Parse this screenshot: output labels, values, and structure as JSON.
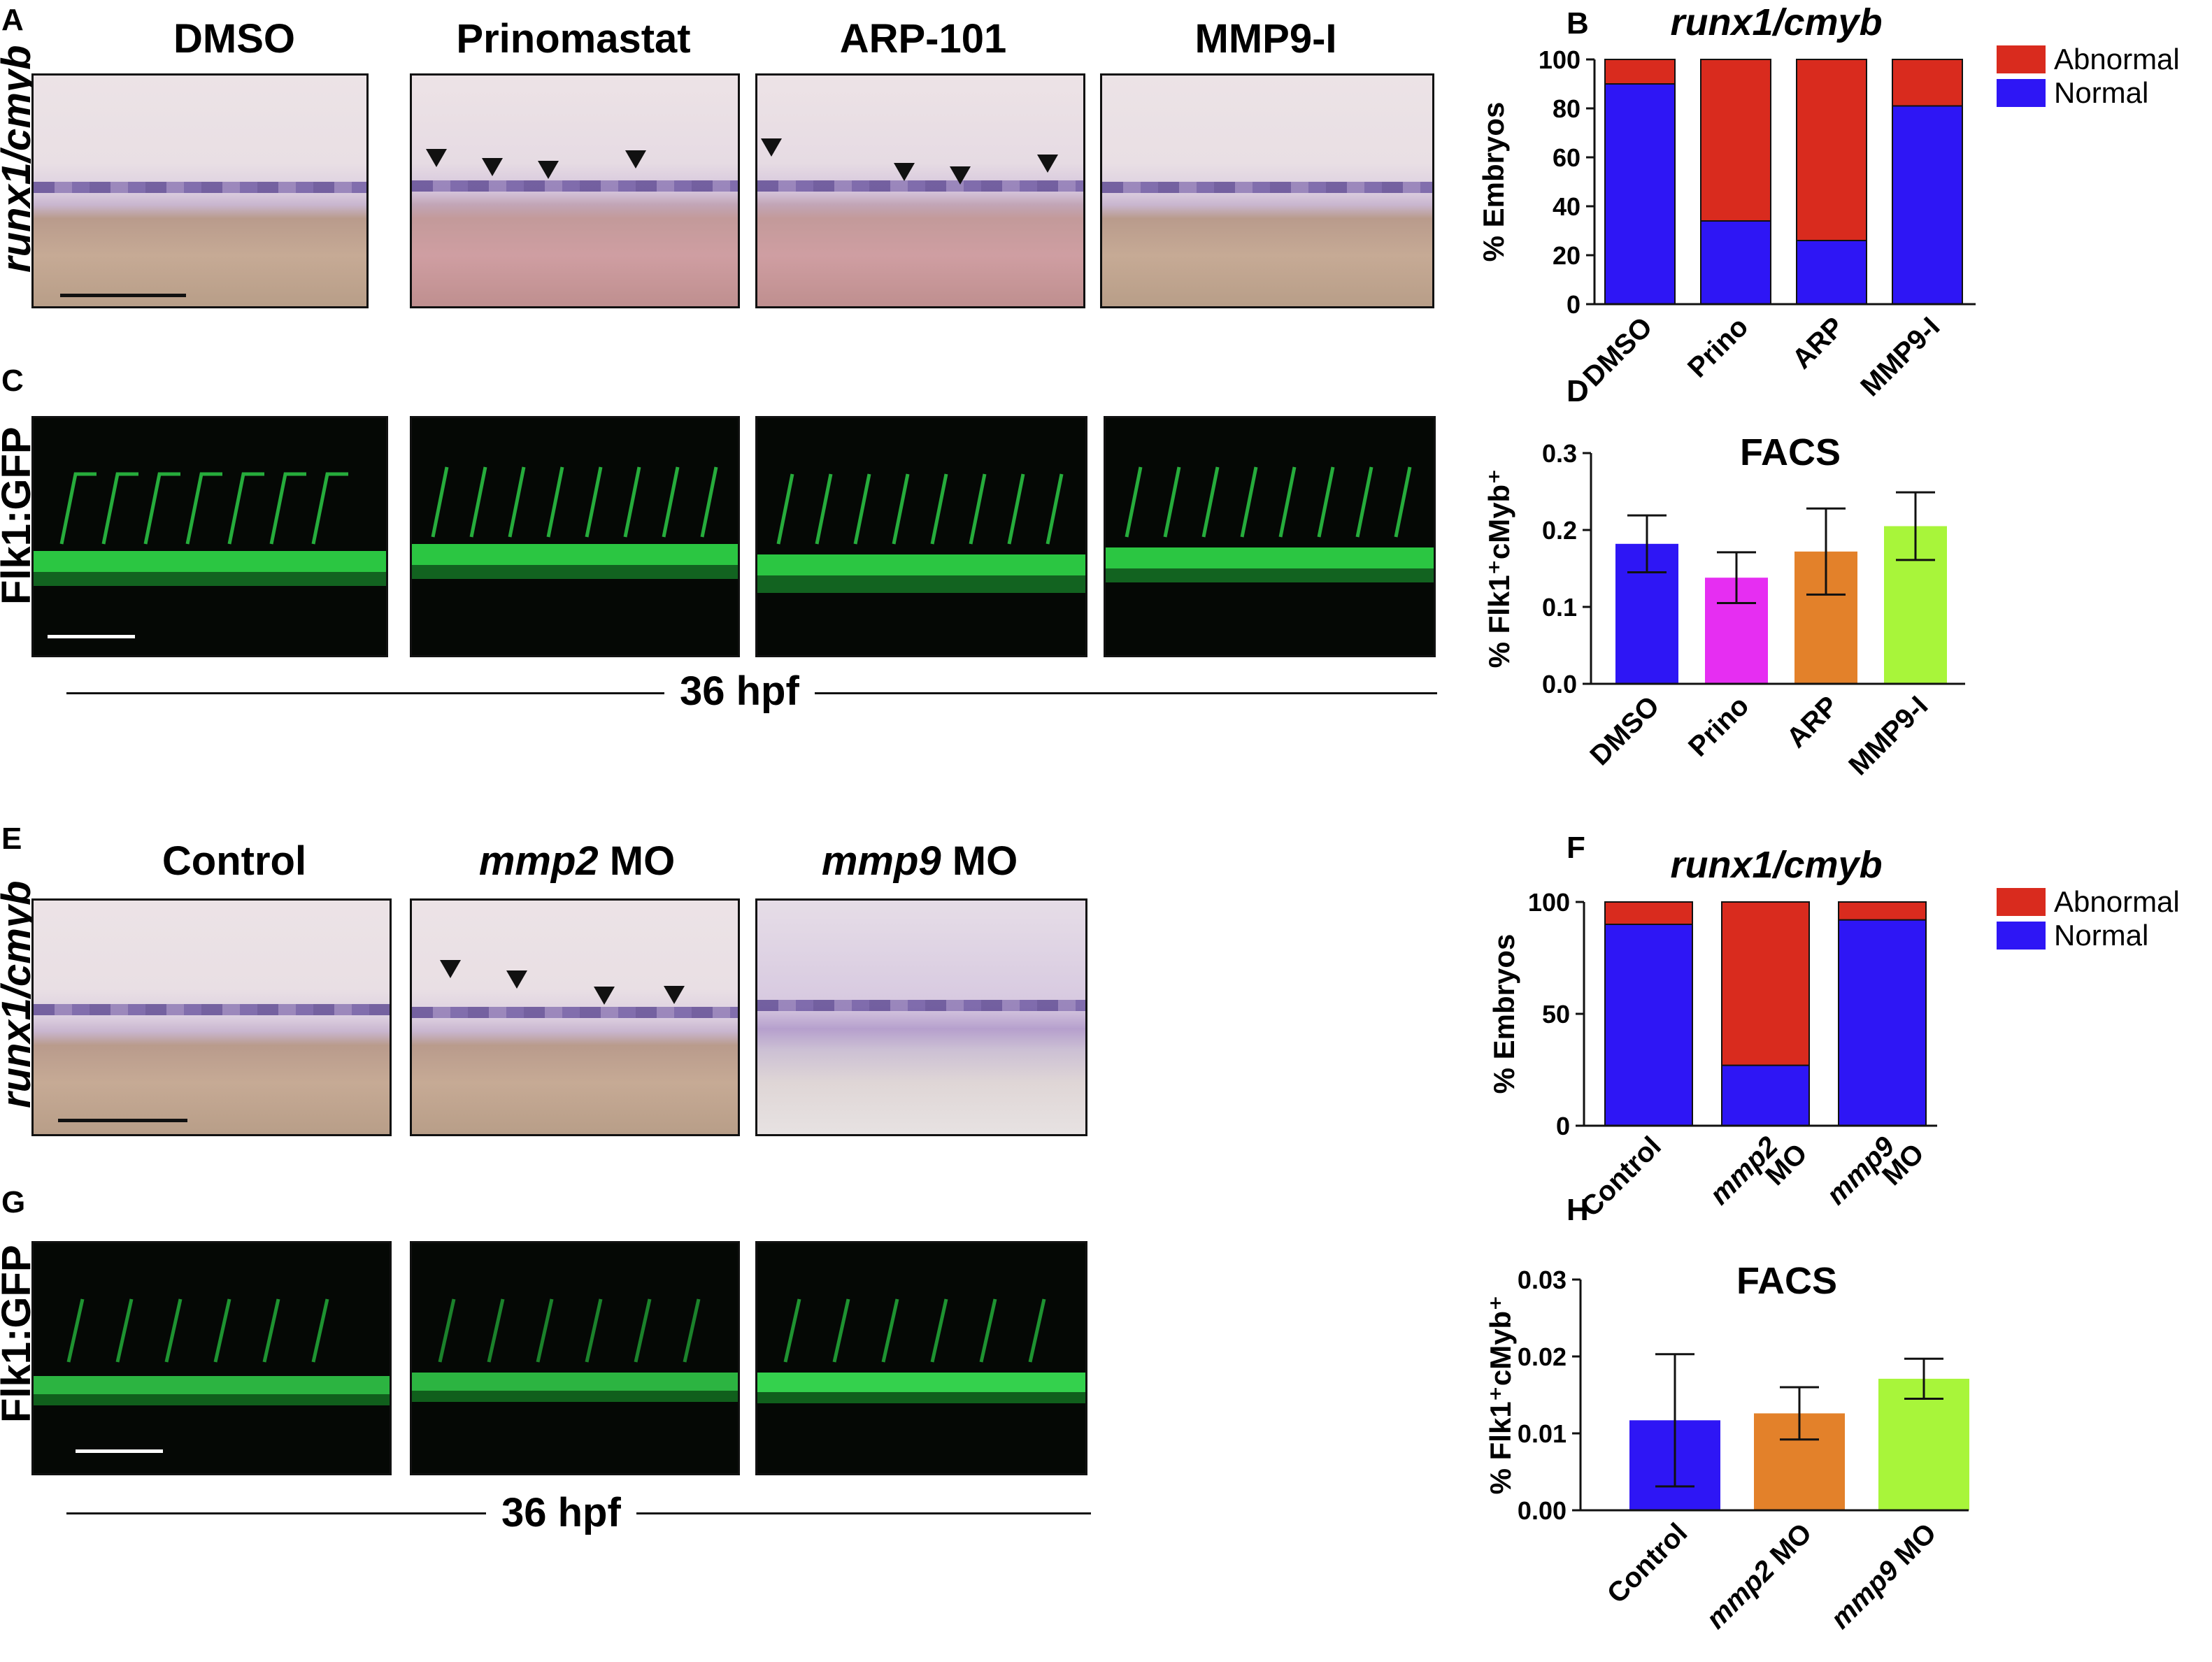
{
  "panels": {
    "a": {
      "letter": "A",
      "col_titles": [
        "DMSO",
        "Prinomastat",
        "ARP-101",
        "MMP9-I"
      ],
      "row_label": "runx1/cmyb"
    },
    "c": {
      "letter": "C",
      "row_label": "Flk1:GFP",
      "stage": "36 hpf"
    },
    "e": {
      "letter": "E",
      "col_titles": [
        {
          "it": "",
          "rest": "Control"
        },
        {
          "it": "mmp2",
          "rest": " MO"
        },
        {
          "it": "mmp9",
          "rest": " MO"
        }
      ],
      "row_label": "runx1/cmyb"
    },
    "g": {
      "letter": "G",
      "row_label": "Flk1:GFP",
      "stage": "36 hpf"
    }
  },
  "colors": {
    "abnormal": "#d92b1e",
    "normal": "#2e16f5",
    "magenta": "#e62ef2",
    "orange": "#e3812a",
    "lime": "#a8f53a"
  },
  "chart_data": [
    {
      "id": "B",
      "type": "bar",
      "stacked": true,
      "title": "runx1/cmyb",
      "ylabel": "% Embryos",
      "ylim": [
        0,
        100
      ],
      "yticks": [
        "0",
        "20",
        "40",
        "60",
        "80",
        "100"
      ],
      "categories": [
        "DMSO",
        "Prino",
        "ARP",
        "MMP9-I"
      ],
      "series": [
        {
          "name": "Normal",
          "color": "#2e16f5",
          "values": [
            90,
            34,
            26,
            81
          ]
        },
        {
          "name": "Abnormal",
          "color": "#d92b1e",
          "values": [
            10,
            66,
            74,
            19
          ]
        }
      ],
      "legend": "right"
    },
    {
      "id": "D",
      "type": "bar",
      "title": "FACS",
      "ylabel": "% Flk1⁺cMyb⁺",
      "ylim": [
        0,
        0.3
      ],
      "yticks": [
        "0.0",
        "0.1",
        "0.2",
        "0.3"
      ],
      "categories": [
        "DMSO",
        "Prino",
        "ARP",
        "MMP9-I"
      ],
      "values": [
        0.182,
        0.138,
        0.172,
        0.205
      ],
      "errors": [
        0.037,
        0.033,
        0.056,
        0.044
      ],
      "colors": [
        "#2e16f5",
        "#e62ef2",
        "#e3812a",
        "#a8f53a"
      ]
    },
    {
      "id": "F",
      "type": "bar",
      "stacked": true,
      "title": "runx1/cmyb",
      "ylabel": "% Embryos",
      "ylim": [
        0,
        100
      ],
      "yticks": [
        "0",
        "50",
        "100"
      ],
      "categories": [
        {
          "lines": [
            {
              "it": "",
              "rest": "Control"
            }
          ]
        },
        {
          "lines": [
            {
              "it": "mmp2",
              "rest": ""
            },
            {
              "it": "",
              "rest": "MO"
            }
          ]
        },
        {
          "lines": [
            {
              "it": "mmp9",
              "rest": ""
            },
            {
              "it": "",
              "rest": "MO"
            }
          ]
        }
      ],
      "series": [
        {
          "name": "Normal",
          "color": "#2e16f5",
          "values": [
            90,
            27,
            92
          ]
        },
        {
          "name": "Abnormal",
          "color": "#d92b1e",
          "values": [
            10,
            73,
            8
          ]
        }
      ],
      "legend": "right"
    },
    {
      "id": "H",
      "type": "bar",
      "title": "FACS",
      "ylabel": "% Flk1⁺cMyb⁺",
      "ylim": [
        0,
        0.03
      ],
      "yticks": [
        "0.00",
        "0.01",
        "0.02",
        "0.03"
      ],
      "categories": [
        {
          "lines": [
            {
              "it": "",
              "rest": "Control"
            }
          ]
        },
        {
          "lines": [
            {
              "it": "mmp2",
              "rest": " MO"
            }
          ]
        },
        {
          "lines": [
            {
              "it": "mmp9",
              "rest": " MO"
            }
          ]
        }
      ],
      "values": [
        0.0117,
        0.0126,
        0.0171
      ],
      "errors": [
        0.0086,
        0.0034,
        0.0026
      ],
      "colors": [
        "#2e16f5",
        "#e3812a",
        "#a8f53a"
      ]
    }
  ]
}
